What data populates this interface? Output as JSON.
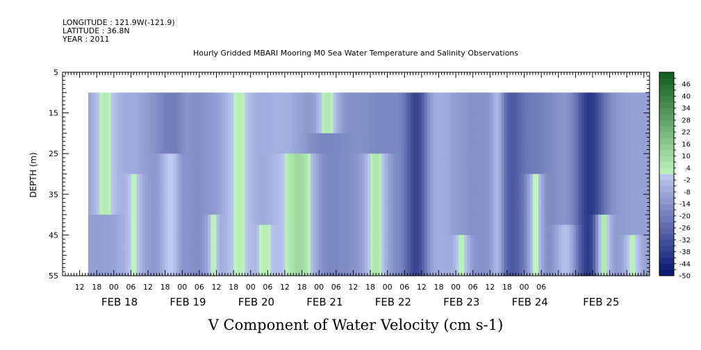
{
  "header": {
    "longitude": "LONGITUDE : 121.9W(-121.9)",
    "latitude": "LATITUDE : 36.8N",
    "year": "YEAR : 2011",
    "title": "Hourly Gridded MBARI Mooring M0 Sea Water Temperature and Salinity Observations"
  },
  "chart_data": {
    "type": "heatmap",
    "title": "V Component of Water Velocity (cm s-1)",
    "ylabel": "DEPTH (m)",
    "xlabel": "",
    "y_reversed": true,
    "ylim": [
      5,
      55
    ],
    "y_ticks": [
      5,
      15,
      25,
      35,
      45,
      55
    ],
    "xlim_hours": [
      0,
      206
    ],
    "hour_ticks": [
      "12",
      "18",
      "00",
      "06",
      "12",
      "18",
      "00",
      "06",
      "12",
      "18",
      "00",
      "06",
      "12",
      "18",
      "00",
      "06",
      "12",
      "18",
      "00",
      "06",
      "12",
      "18",
      "00",
      "06",
      "12",
      "18",
      "00",
      "06"
    ],
    "date_labels": [
      "FEB 18",
      "FEB 19",
      "FEB 20",
      "FEB 21",
      "FEB 22",
      "FEB 23",
      "FEB 24",
      "FEB 25"
    ],
    "data_depth_range": [
      10,
      55
    ],
    "data_start_hour": 9,
    "colorbar": {
      "labels": [
        "46",
        "40",
        "34",
        "28",
        "22",
        "16",
        "10",
        "4",
        "-2",
        "-8",
        "-14",
        "-20",
        "-26",
        "-32",
        "-38",
        "-44",
        "-50"
      ],
      "min": -50,
      "max": 52,
      "step": 3
    },
    "features": [
      {
        "t": 15,
        "top": 10,
        "bottom": 40,
        "v": 4,
        "w": 3
      },
      {
        "t": 25,
        "top": 30,
        "bottom": 55,
        "v": 2,
        "w": 2
      },
      {
        "t": 38,
        "top": 25,
        "bottom": 55,
        "v": 1,
        "w": 3
      },
      {
        "t": 44,
        "top": 10,
        "bottom": 55,
        "v": -14,
        "w": 2
      },
      {
        "t": 53,
        "top": 40,
        "bottom": 55,
        "v": 3,
        "w": 1.5
      },
      {
        "t": 62,
        "top": 10,
        "bottom": 55,
        "v": 3,
        "w": 4
      },
      {
        "t": 71,
        "top": 42,
        "bottom": 55,
        "v": 4,
        "w": 2
      },
      {
        "t": 83,
        "top": 25,
        "bottom": 55,
        "v": 10,
        "w": 4
      },
      {
        "t": 93,
        "top": 10,
        "bottom": 20,
        "v": 5,
        "w": 3
      },
      {
        "t": 110,
        "top": 25,
        "bottom": 55,
        "v": 6,
        "w": 3
      },
      {
        "t": 124,
        "top": 10,
        "bottom": 55,
        "v": -36,
        "w": 3
      },
      {
        "t": 140,
        "top": 45,
        "bottom": 55,
        "v": 3,
        "w": 2
      },
      {
        "t": 153,
        "top": 10,
        "bottom": 55,
        "v": 3,
        "w": 1.5
      },
      {
        "t": 158,
        "top": 10,
        "bottom": 55,
        "v": -30,
        "w": 3
      },
      {
        "t": 166,
        "top": 30,
        "bottom": 55,
        "v": 2,
        "w": 2
      },
      {
        "t": 178,
        "top": 42,
        "bottom": 55,
        "v": 5,
        "w": 3
      },
      {
        "t": 185,
        "top": 10,
        "bottom": 55,
        "v": -40,
        "w": 4
      },
      {
        "t": 190,
        "top": 40,
        "bottom": 55,
        "v": 6,
        "w": 2
      },
      {
        "t": 200,
        "top": 45,
        "bottom": 55,
        "v": 3,
        "w": 2
      }
    ]
  }
}
